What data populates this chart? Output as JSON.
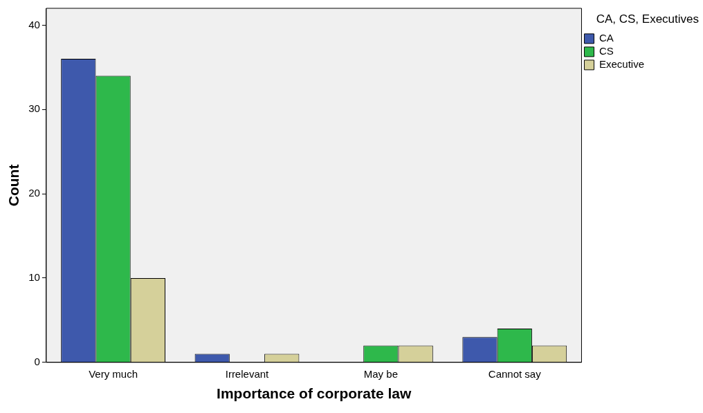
{
  "chart_data": {
    "type": "bar",
    "xlabel": "Importance of corporate law",
    "ylabel": "Count",
    "legend_title": "CA, CS, Executives",
    "categories": [
      "Very much",
      "Irrelevant",
      "May be",
      "Cannot say"
    ],
    "series": [
      {
        "name": "CA",
        "color": "#3e59ac",
        "values": [
          36,
          1,
          0,
          3
        ]
      },
      {
        "name": "CS",
        "color": "#2eb84b",
        "values": [
          34,
          0,
          2,
          4
        ]
      },
      {
        "name": "Executive",
        "color": "#d5d09a",
        "values": [
          10,
          1,
          2,
          2
        ]
      }
    ],
    "ylim": [
      0,
      42
    ],
    "yticks": [
      0,
      10,
      20,
      30,
      40
    ],
    "grid": false,
    "legend": "top right"
  }
}
